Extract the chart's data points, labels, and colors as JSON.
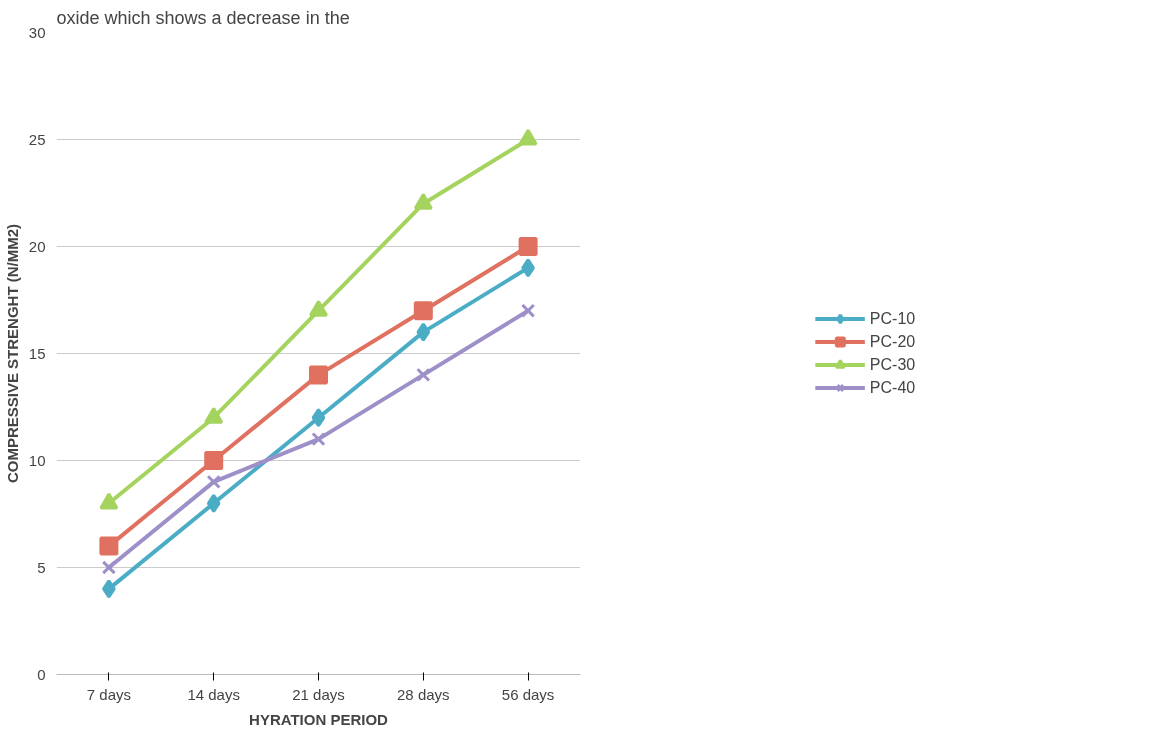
{
  "chart_data": {
    "type": "line",
    "categories": [
      "7 days",
      "14 days",
      "21 days",
      "28 days",
      "56 days"
    ],
    "series": [
      {
        "name": "PC-10",
        "color": "#4bacc6",
        "marker": "diamond",
        "values": [
          4,
          8,
          12,
          16,
          19
        ]
      },
      {
        "name": "PC-20",
        "color": "#e0705f",
        "marker": "square",
        "values": [
          6,
          10,
          14,
          17,
          20
        ]
      },
      {
        "name": "PC-30",
        "color": "#a4d35e",
        "marker": "triangle",
        "values": [
          8,
          12,
          17,
          22,
          25
        ]
      },
      {
        "name": "PC-40",
        "color": "#9e8fc9",
        "marker": "cross",
        "values": [
          5,
          9,
          11,
          14,
          17
        ]
      }
    ],
    "xlabel": "HYRATION PERIOD",
    "ylabel": "COMPRESSIVE STRENGHT (N/MM2)",
    "ylim": [
      0,
      30
    ],
    "yticks": [
      0,
      5,
      10,
      15,
      20,
      25,
      30
    ],
    "grid": "y",
    "legend": "right",
    "line_style": "solid",
    "annotations": [
      "oxide which shows a decrease in the"
    ]
  }
}
